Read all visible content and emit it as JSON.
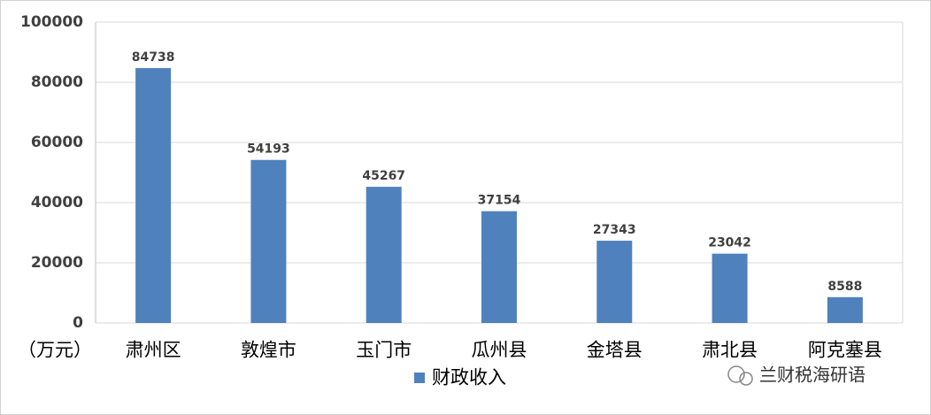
{
  "chart_data": {
    "type": "bar",
    "y_unit_label": "（万元）",
    "categories": [
      "肃州区",
      "敦煌市",
      "玉门市",
      "瓜州县",
      "金塔县",
      "肃北县",
      "阿克塞县"
    ],
    "series": [
      {
        "name": "财政收入",
        "color": "#4f81bd",
        "values": [
          84738,
          54193,
          45267,
          37154,
          27343,
          23042,
          8588
        ]
      }
    ],
    "ylim": [
      0,
      100000
    ],
    "yticks": [
      0,
      20000,
      40000,
      60000,
      80000,
      100000
    ],
    "grid": true,
    "legend": "bottom",
    "watermark": "兰财税海研语"
  }
}
